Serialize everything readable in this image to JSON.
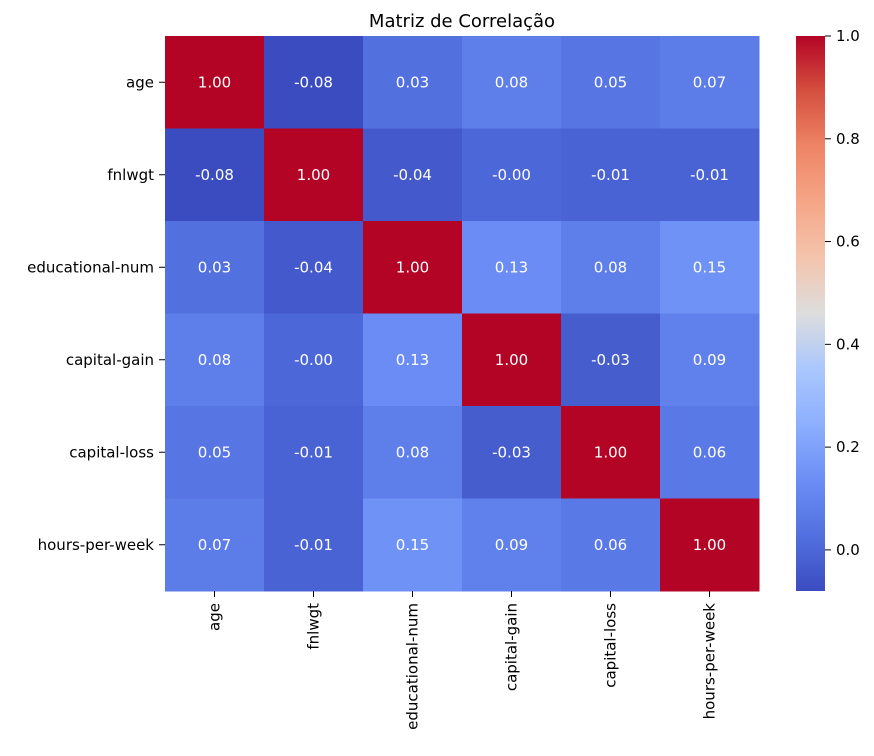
{
  "chart_data": {
    "type": "heatmap",
    "title": "Matriz de Correlação",
    "rows": [
      "age",
      "fnlwgt",
      "educational-num",
      "capital-gain",
      "capital-loss",
      "hours-per-week"
    ],
    "columns": [
      "age",
      "fnlwgt",
      "educational-num",
      "capital-gain",
      "capital-loss",
      "hours-per-week"
    ],
    "values": [
      [
        1.0,
        -0.08,
        0.03,
        0.08,
        0.05,
        0.07
      ],
      [
        -0.08,
        1.0,
        -0.04,
        -0.0,
        -0.01,
        -0.01
      ],
      [
        0.03,
        -0.04,
        1.0,
        0.13,
        0.08,
        0.15
      ],
      [
        0.08,
        -0.0,
        0.13,
        1.0,
        -0.03,
        0.09
      ],
      [
        0.05,
        -0.01,
        0.08,
        -0.03,
        1.0,
        0.06
      ],
      [
        0.07,
        -0.01,
        0.15,
        0.09,
        0.06,
        1.0
      ]
    ],
    "annotations": [
      [
        "1.00",
        "-0.08",
        "0.03",
        "0.08",
        "0.05",
        "0.07"
      ],
      [
        "-0.08",
        "1.00",
        "-0.04",
        "-0.00",
        "-0.01",
        "-0.01"
      ],
      [
        "0.03",
        "-0.04",
        "1.00",
        "0.13",
        "0.08",
        "0.15"
      ],
      [
        "0.08",
        "-0.00",
        "0.13",
        "1.00",
        "-0.03",
        "0.09"
      ],
      [
        "0.05",
        "-0.01",
        "0.08",
        "-0.03",
        "1.00",
        "0.06"
      ],
      [
        "0.07",
        "-0.01",
        "0.15",
        "0.09",
        "0.06",
        "1.00"
      ]
    ],
    "colormap": "coolwarm",
    "vmin": -0.08,
    "vmax": 1.0,
    "colorbar_ticks": [
      "0.0",
      "0.2",
      "0.4",
      "0.6",
      "0.8",
      "1.0"
    ],
    "colorbar_tick_values": [
      0.0,
      0.2,
      0.4,
      0.6,
      0.8,
      1.0
    ],
    "colorbar_position": "right"
  }
}
